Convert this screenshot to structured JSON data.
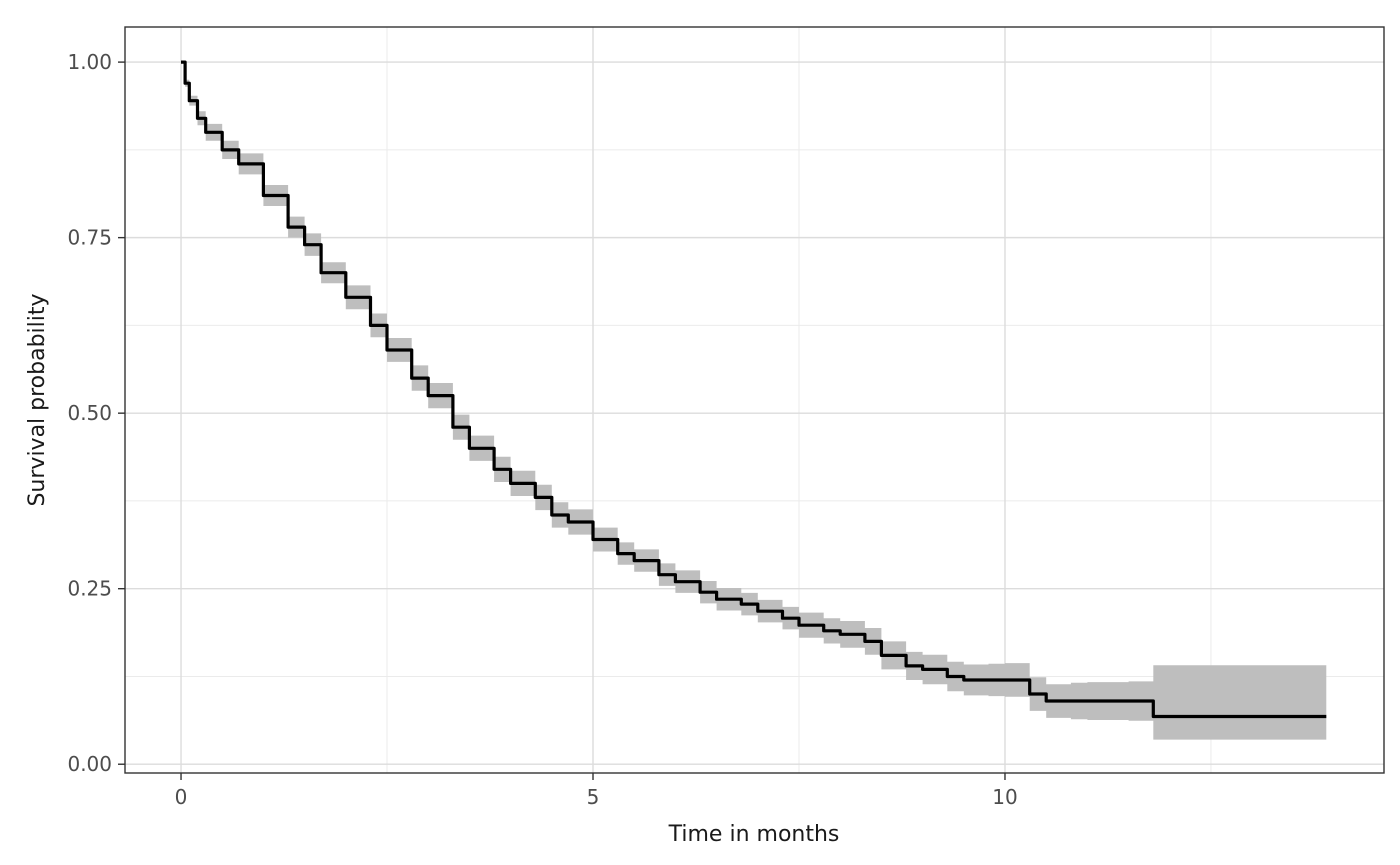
{
  "chart_data": {
    "type": "line",
    "title": "",
    "xlabel": "Time in months",
    "ylabel": "Survival probability",
    "xlim": [
      -0.68,
      14.6
    ],
    "ylim": [
      -0.0125,
      1.05
    ],
    "x_ticks": [
      0,
      5,
      10
    ],
    "x_tick_labels": [
      "0",
      "5",
      "10"
    ],
    "y_ticks": [
      0.0,
      0.25,
      0.5,
      0.75,
      1.0
    ],
    "y_tick_labels": [
      "0.00",
      "0.25",
      "0.50",
      "0.75",
      "1.00"
    ],
    "grid": true,
    "series": [
      {
        "line_color": "#000000",
        "band_color": "#bebebe",
        "x": [
          0,
          0.05,
          0.1,
          0.2,
          0.3,
          0.5,
          0.7,
          1.0,
          1.3,
          1.5,
          1.7,
          2.0,
          2.3,
          2.5,
          2.8,
          3.0,
          3.3,
          3.5,
          3.8,
          4.0,
          4.3,
          4.5,
          4.7,
          5.0,
          5.3,
          5.5,
          5.8,
          6.0,
          6.3,
          6.5,
          6.8,
          7.0,
          7.3,
          7.5,
          7.8,
          8.0,
          8.3,
          8.5,
          8.8,
          9.0,
          9.3,
          9.5,
          9.8,
          10.0,
          10.3,
          10.5,
          10.8,
          11.0,
          11.5,
          11.7,
          11.8,
          12.0,
          12.5,
          13.0,
          13.5,
          13.9
        ],
        "y": [
          1.0,
          0.97,
          0.945,
          0.92,
          0.9,
          0.875,
          0.855,
          0.81,
          0.765,
          0.74,
          0.7,
          0.665,
          0.625,
          0.59,
          0.55,
          0.525,
          0.48,
          0.45,
          0.42,
          0.4,
          0.38,
          0.355,
          0.345,
          0.32,
          0.3,
          0.29,
          0.27,
          0.26,
          0.245,
          0.235,
          0.228,
          0.218,
          0.208,
          0.198,
          0.19,
          0.185,
          0.175,
          0.155,
          0.14,
          0.135,
          0.125,
          0.12,
          0.12,
          0.12,
          0.1,
          0.09,
          0.09,
          0.09,
          0.09,
          0.09,
          0.068,
          0.068,
          0.068,
          0.068,
          0.068,
          0.068
        ],
        "lower": [
          1.0,
          0.965,
          0.938,
          0.91,
          0.888,
          0.862,
          0.84,
          0.795,
          0.75,
          0.724,
          0.685,
          0.648,
          0.608,
          0.573,
          0.532,
          0.507,
          0.462,
          0.432,
          0.402,
          0.382,
          0.362,
          0.337,
          0.327,
          0.303,
          0.284,
          0.274,
          0.254,
          0.244,
          0.229,
          0.219,
          0.212,
          0.202,
          0.192,
          0.18,
          0.172,
          0.166,
          0.156,
          0.135,
          0.12,
          0.114,
          0.104,
          0.098,
          0.097,
          0.096,
          0.076,
          0.066,
          0.064,
          0.063,
          0.062,
          0.062,
          0.035,
          0.035,
          0.035,
          0.035,
          0.035,
          0.035
        ],
        "upper": [
          1.0,
          0.975,
          0.952,
          0.93,
          0.912,
          0.888,
          0.87,
          0.825,
          0.78,
          0.756,
          0.715,
          0.682,
          0.642,
          0.607,
          0.568,
          0.543,
          0.498,
          0.468,
          0.438,
          0.418,
          0.398,
          0.373,
          0.363,
          0.337,
          0.316,
          0.306,
          0.286,
          0.276,
          0.261,
          0.251,
          0.244,
          0.234,
          0.224,
          0.216,
          0.208,
          0.204,
          0.194,
          0.175,
          0.16,
          0.156,
          0.146,
          0.142,
          0.143,
          0.144,
          0.124,
          0.114,
          0.116,
          0.117,
          0.118,
          0.118,
          0.141,
          0.141,
          0.141,
          0.141,
          0.141,
          0.141
        ]
      }
    ]
  }
}
